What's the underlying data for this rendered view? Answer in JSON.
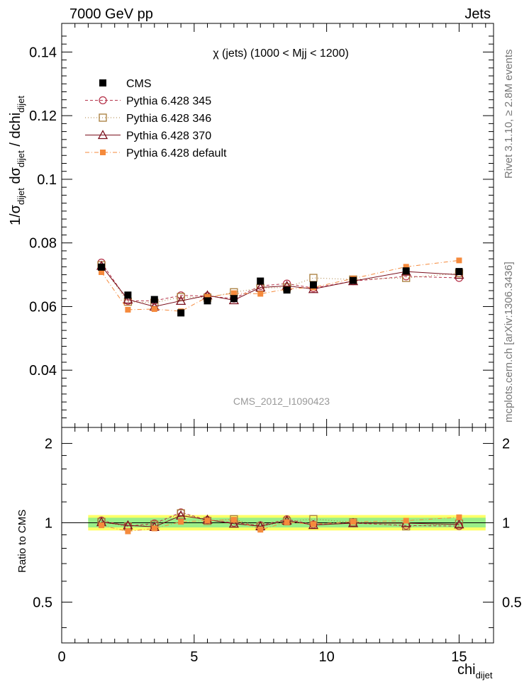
{
  "header": {
    "left": "7000 GeV pp",
    "right": "Jets"
  },
  "side_labels": {
    "rivet": "Rivet 3.1.10, ≥ 2.8M events",
    "mcplots": "mcplots.cern.ch [arXiv:1306.3436]"
  },
  "chart_data": {
    "type": "line",
    "title": "χ (jets) (1000 < Mjj < 1200)",
    "watermark": "CMS_2012_I1090423",
    "xlabel": "chi_dijet",
    "ylabel": "1/σ_dijet dσ_dijet / dchi_dijet",
    "ratio_ylabel": "Ratio to CMS",
    "xlim": [
      0,
      16.3
    ],
    "ylim": [
      0.022,
      0.149
    ],
    "ratio_ylim": [
      0.35,
      2.3
    ],
    "x_ticks": [
      "0",
      "5",
      "10",
      "15"
    ],
    "y_ticks": [
      "0.04",
      "0.06",
      "0.08",
      "0.1",
      "0.12",
      "0.14"
    ],
    "ratio_ticks": [
      "0.5",
      "1",
      "2"
    ],
    "x": [
      1.5,
      2.5,
      3.5,
      4.5,
      5.5,
      6.5,
      7.5,
      8.5,
      9.5,
      11,
      13,
      15
    ],
    "x_edges": [
      1,
      2,
      3,
      4,
      5,
      6,
      7,
      8,
      9,
      10,
      12,
      14,
      16
    ],
    "cms": {
      "name": "CMS",
      "values": [
        0.0724,
        0.0636,
        0.0622,
        0.058,
        0.0618,
        0.0625,
        0.068,
        0.0652,
        0.0668,
        0.0682,
        0.0712,
        0.071
      ]
    },
    "series": [
      {
        "name": "Pythia 6.428 345",
        "values": [
          0.0738,
          0.0618,
          0.0618,
          0.0635,
          0.0633,
          0.0625,
          0.0665,
          0.0672,
          0.0658,
          0.068,
          0.0695,
          0.069
        ],
        "color": "#b5334a",
        "marker": "circle-open",
        "dash": "4,3"
      },
      {
        "name": "Pythia 6.428 346",
        "values": [
          0.073,
          0.0615,
          0.0612,
          0.063,
          0.0628,
          0.0645,
          0.0658,
          0.066,
          0.069,
          0.0685,
          0.069,
          0.0705
        ],
        "color": "#a87c3a",
        "marker": "square-open",
        "dash": "1,3"
      },
      {
        "name": "Pythia 6.428 370",
        "values": [
          0.0728,
          0.0622,
          0.06,
          0.0618,
          0.0635,
          0.062,
          0.066,
          0.0665,
          0.0655,
          0.068,
          0.071,
          0.07
        ],
        "color": "#7a0f1c",
        "marker": "triangle-open",
        "dash": ""
      },
      {
        "name": "Pythia 6.428 default",
        "values": [
          0.0708,
          0.059,
          0.0592,
          0.0585,
          0.063,
          0.0642,
          0.064,
          0.0655,
          0.066,
          0.0688,
          0.0725,
          0.0745
        ],
        "color": "#f58a3c",
        "marker": "square-filled",
        "dash": "6,3,1,3"
      }
    ],
    "legend_position": "top-left"
  }
}
